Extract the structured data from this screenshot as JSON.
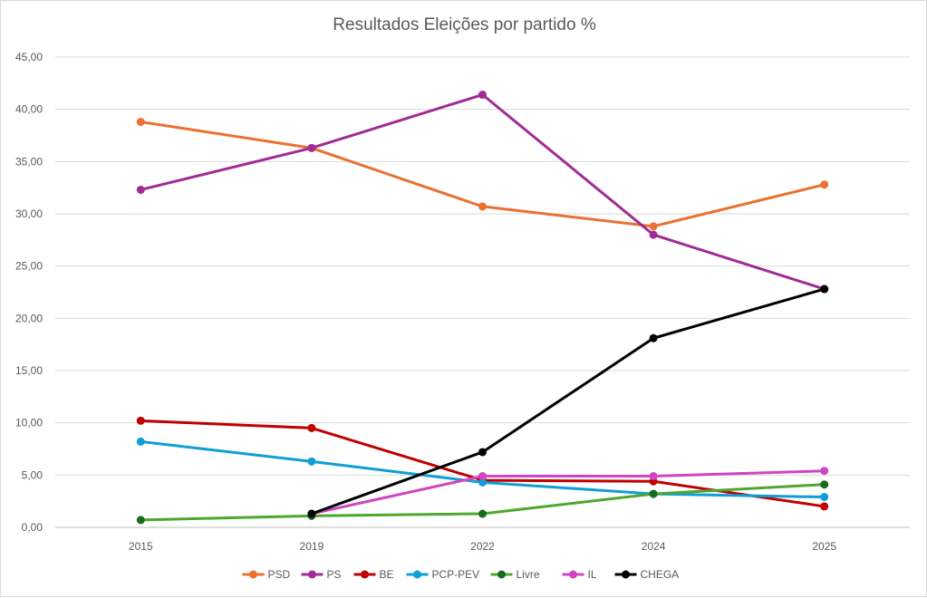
{
  "chart_data": {
    "type": "line",
    "title": "Resultados Eleições por partido %",
    "xlabel": "",
    "ylabel": "",
    "categories": [
      "2015",
      "2019",
      "2022",
      "2024",
      "2025"
    ],
    "ylim": [
      0,
      45
    ],
    "yticks": [
      "0,00",
      "5,00",
      "10,00",
      "15,00",
      "20,00",
      "25,00",
      "30,00",
      "35,00",
      "40,00",
      "45,00"
    ],
    "grid": true,
    "legend_position": "bottom",
    "series": [
      {
        "name": "PSD",
        "color": "#e97132",
        "marker": "#e97132",
        "values": [
          38.8,
          36.3,
          30.7,
          28.8,
          32.8
        ]
      },
      {
        "name": "PS",
        "color": "#a02b93",
        "marker": "#a02b93",
        "values": [
          32.3,
          36.3,
          41.4,
          28.0,
          22.8
        ]
      },
      {
        "name": "BE",
        "color": "#c00000",
        "marker": "#c00000",
        "values": [
          10.2,
          9.5,
          4.5,
          4.4,
          2.0
        ]
      },
      {
        "name": "PCP-PEV",
        "color": "#0f9ed5",
        "marker": "#0f9ed5",
        "values": [
          8.2,
          6.3,
          4.3,
          3.2,
          2.9
        ]
      },
      {
        "name": "Livre",
        "color": "#4ea72e",
        "marker": "#196b24",
        "values": [
          0.7,
          1.1,
          1.3,
          3.2,
          4.1
        ]
      },
      {
        "name": "IL",
        "color": "#d145c1",
        "marker": "#d145c1",
        "values": [
          null,
          1.3,
          4.9,
          4.9,
          5.4
        ]
      },
      {
        "name": "CHEGA",
        "color": "#000000",
        "marker": "#000000",
        "values": [
          null,
          1.3,
          7.2,
          18.1,
          22.8
        ]
      }
    ]
  }
}
